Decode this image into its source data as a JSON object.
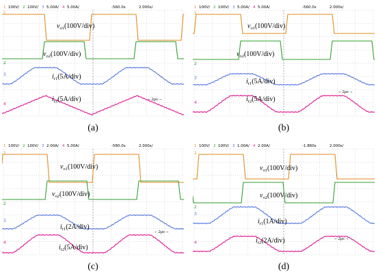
{
  "colors": {
    "ch1": "#e08a1e",
    "ch2": "#2f9e2f",
    "ch3": "#5577dd",
    "ch4": "#dd2a99",
    "grid": "#b8b8b8"
  },
  "panels": [
    {
      "id": "a",
      "caption": "(a)",
      "header": {
        "ch1": "100V/",
        "ch2": "100V/",
        "ch3": "5.00A/",
        "ch4": "5.00A/",
        "delay": "-560.0s",
        "timebase": "2.000s/"
      },
      "labels": {
        "v1": "vo1(100V/div)",
        "v1_sym": "v",
        "v1_sub": "o1",
        "v1_scale": "(100V/div)",
        "v2_sym": "v",
        "v2_sub": "o2",
        "v2_scale": "(100V/div)",
        "i1_sym": "i",
        "i1_sub": "r1",
        "i1_scale": "(5A/div)",
        "i2_sym": "i",
        "i2_sub": "r2",
        "i2_scale": "(5A/div)"
      },
      "scale_bar": "2μs"
    },
    {
      "id": "b",
      "caption": "(b)",
      "header": {
        "ch1": "100V/",
        "ch2": "100V/",
        "ch3": "5.00A/",
        "ch4": "5.00A/",
        "delay": "-560.0s",
        "timebase": "2.000s/"
      },
      "labels": {
        "v1_sym": "v",
        "v1_sub": "o1",
        "v1_scale": "(100V/div)",
        "v2_sym": "v",
        "v2_sub": "o2",
        "v2_scale": "(100V/div)",
        "i1_sym": "i",
        "i1_sub": "r1",
        "i1_scale": "(5A/div)",
        "i2_sym": "i",
        "i2_sub": "r2",
        "i2_scale": "(5A/div)"
      },
      "scale_bar": "2μs"
    },
    {
      "id": "c",
      "caption": "(c)",
      "header": {
        "ch1": "100V/",
        "ch2": "100V/",
        "ch3": "2.00A/",
        "ch4": "5.00A/",
        "delay": "-580.0s",
        "timebase": "2.000s/"
      },
      "labels": {
        "v1_sym": "v",
        "v1_sub": "o1",
        "v1_scale": "(100V/div)",
        "v2_sym": "v",
        "v2_sub": "o2",
        "v2_scale": "(100V/div)",
        "i1_sym": "i",
        "i1_sub": "r1",
        "i1_scale": "(2A/div)",
        "i2_sym": "i",
        "i2_sub": "r2",
        "i2_scale": "(5A/div)"
      },
      "scale_bar": "2μs"
    },
    {
      "id": "d",
      "caption": "(d)",
      "header": {
        "ch1": "100V/",
        "ch2": "100V/",
        "ch3": "1.00A/",
        "ch4": "2.00A/",
        "delay": "-1.860s",
        "timebase": "2.000s/"
      },
      "labels": {
        "v1_sym": "v",
        "v1_sub": "o1",
        "v1_scale": "(100V/div)",
        "v2_sym": "v",
        "v2_sub": "o2",
        "v2_scale": "(100V/div)",
        "i1_sym": "i",
        "i1_sub": "r1",
        "i1_scale": "(1A/div)",
        "i2_sym": "i",
        "i2_sub": "r2",
        "i2_scale": "(2A/div)"
      },
      "scale_bar": "2μs"
    }
  ]
}
